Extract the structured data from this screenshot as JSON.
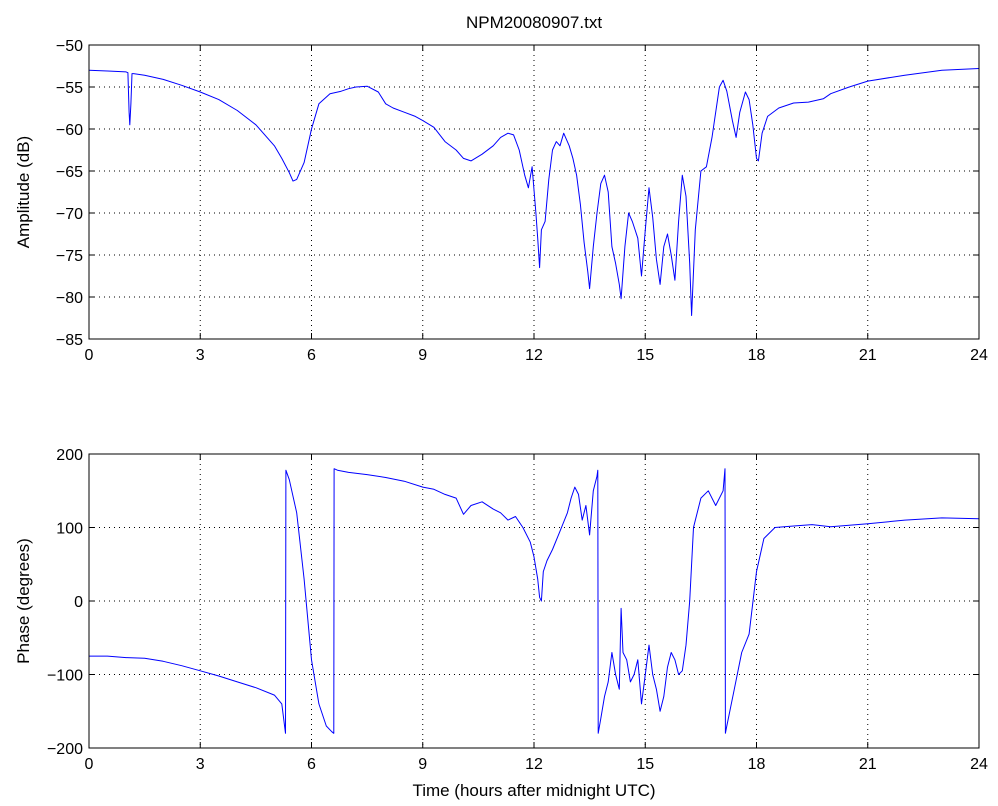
{
  "chart_data": [
    {
      "type": "line",
      "title": "NPM20080907.txt",
      "xlabel": "",
      "ylabel": "Amplitude (dB)",
      "xlim": [
        0,
        24
      ],
      "ylim": [
        -85,
        -50
      ],
      "xticks": [
        0,
        3,
        6,
        9,
        12,
        15,
        18,
        21,
        24
      ],
      "yticks": [
        -85,
        -80,
        -75,
        -70,
        -65,
        -60,
        -55,
        -50
      ],
      "xtick_labels": [
        "0",
        "3",
        "6",
        "9",
        "12",
        "15",
        "18",
        "21",
        "24"
      ],
      "ytick_labels": [
        "−85",
        "−80",
        "−75",
        "−70",
        "−65",
        "−60",
        "−55",
        "−50"
      ],
      "grid": true,
      "color": "#0000ff",
      "series": [
        {
          "x": [
            0,
            0.5,
            1.0,
            1.05,
            1.08,
            1.1,
            1.13,
            1.16,
            1.2,
            1.5,
            2.0,
            2.5,
            3.0,
            3.5,
            4.0,
            4.5,
            5.0,
            5.2,
            5.4,
            5.5,
            5.6,
            5.8,
            6.0,
            6.2,
            6.5,
            6.8,
            7.0,
            7.2,
            7.5,
            7.8,
            8.0,
            8.2,
            8.5,
            8.8,
            9.0,
            9.3,
            9.6,
            9.9,
            10.1,
            10.3,
            10.6,
            10.9,
            11.1,
            11.3,
            11.45,
            11.6,
            11.75,
            11.85,
            11.95,
            12.05,
            12.1,
            12.15,
            12.2,
            12.3,
            12.4,
            12.5,
            12.6,
            12.7,
            12.8,
            12.95,
            13.05,
            13.15,
            13.25,
            13.35,
            13.45,
            13.5,
            13.6,
            13.7,
            13.8,
            13.9,
            14.0,
            14.1,
            14.2,
            14.3,
            14.35,
            14.45,
            14.55,
            14.65,
            14.8,
            14.9,
            15.0,
            15.1,
            15.2,
            15.3,
            15.4,
            15.5,
            15.6,
            15.7,
            15.8,
            15.9,
            16.0,
            16.1,
            16.2,
            16.25,
            16.35,
            16.5,
            16.65,
            16.8,
            17.0,
            17.1,
            17.2,
            17.35,
            17.45,
            17.55,
            17.7,
            17.8,
            17.9,
            18.0,
            18.05,
            18.15,
            18.3,
            18.6,
            19.0,
            19.4,
            19.8,
            20.0,
            20.5,
            21.0,
            22.0,
            23.0,
            24.0
          ],
          "y": [
            -53.0,
            -53.1,
            -53.2,
            -53.3,
            -58.0,
            -59.5,
            -57.0,
            -53.4,
            -53.4,
            -53.6,
            -54.1,
            -54.8,
            -55.6,
            -56.5,
            -57.8,
            -59.5,
            -62.0,
            -63.5,
            -65.2,
            -66.2,
            -66.0,
            -64.0,
            -60.0,
            -57.0,
            -55.8,
            -55.5,
            -55.2,
            -55.0,
            -54.9,
            -55.6,
            -57.0,
            -57.5,
            -58.0,
            -58.5,
            -59.0,
            -59.8,
            -61.5,
            -62.5,
            -63.5,
            -63.8,
            -63.0,
            -62.0,
            -61.0,
            -60.5,
            -60.7,
            -62.5,
            -65.5,
            -67.0,
            -64.5,
            -70.0,
            -73.0,
            -76.5,
            -72.0,
            -71.0,
            -66.0,
            -62.5,
            -61.5,
            -62.0,
            -60.5,
            -62.0,
            -63.5,
            -65.5,
            -69.0,
            -73.5,
            -77.0,
            -79.0,
            -74.0,
            -70.0,
            -66.5,
            -65.5,
            -67.5,
            -74.0,
            -76.0,
            -78.5,
            -80.2,
            -74.0,
            -70.0,
            -71.0,
            -73.0,
            -77.5,
            -72.0,
            -67.0,
            -70.5,
            -75.5,
            -78.5,
            -74.0,
            -72.5,
            -75.0,
            -78.0,
            -71.0,
            -65.5,
            -68.0,
            -76.0,
            -82.2,
            -72.0,
            -65.0,
            -64.5,
            -61.0,
            -55.0,
            -54.2,
            -55.5,
            -59.0,
            -61.0,
            -58.0,
            -55.6,
            -56.5,
            -59.5,
            -63.5,
            -63.8,
            -60.5,
            -58.5,
            -57.5,
            -56.9,
            -56.8,
            -56.4,
            -55.8,
            -55.0,
            -54.3,
            -53.6,
            -53.0,
            -52.8
          ]
        }
      ]
    },
    {
      "type": "line",
      "title": "",
      "xlabel": "Time (hours after midnight UTC)",
      "ylabel": "Phase (degrees)",
      "xlim": [
        0,
        24
      ],
      "ylim": [
        -200,
        200
      ],
      "xticks": [
        0,
        3,
        6,
        9,
        12,
        15,
        18,
        21,
        24
      ],
      "yticks": [
        -200,
        -100,
        0,
        100,
        200
      ],
      "xtick_labels": [
        "0",
        "3",
        "6",
        "9",
        "12",
        "15",
        "18",
        "21",
        "24"
      ],
      "ytick_labels": [
        "−200",
        "−100",
        "0",
        "100",
        "200"
      ],
      "grid": true,
      "color": "#0000ff",
      "series": [
        {
          "x": [
            0,
            0.5,
            1.0,
            1.5,
            2.0,
            2.5,
            3.0,
            3.5,
            4.0,
            4.5,
            5.0,
            5.2,
            5.3,
            5.31,
            5.4,
            5.6,
            5.8,
            6.0,
            6.2,
            6.4,
            6.55,
            6.6,
            6.61,
            6.7,
            7.0,
            7.5,
            8.0,
            8.5,
            9.0,
            9.3,
            9.6,
            9.9,
            10.1,
            10.3,
            10.6,
            10.9,
            11.1,
            11.3,
            11.5,
            11.7,
            11.9,
            12.0,
            12.1,
            12.15,
            12.2,
            12.25,
            12.35,
            12.5,
            12.7,
            12.9,
            13.0,
            13.1,
            13.2,
            13.3,
            13.4,
            13.5,
            13.6,
            13.7,
            13.72,
            13.73,
            13.8,
            13.9,
            14.0,
            14.1,
            14.2,
            14.3,
            14.35,
            14.4,
            14.5,
            14.6,
            14.7,
            14.8,
            14.9,
            15.0,
            15.1,
            15.2,
            15.3,
            15.4,
            15.5,
            15.6,
            15.7,
            15.8,
            15.9,
            16.0,
            16.1,
            16.2,
            16.3,
            16.5,
            16.7,
            16.9,
            17.1,
            17.15,
            17.16,
            17.2,
            17.4,
            17.6,
            17.8,
            18.0,
            18.2,
            18.5,
            19.0,
            19.5,
            20.0,
            21.0,
            22.0,
            23.0,
            24.0
          ],
          "y": [
            -75,
            -75,
            -77,
            -78,
            -82,
            -88,
            -95,
            -102,
            -110,
            -118,
            -128,
            -140,
            -180,
            178,
            165,
            120,
            30,
            -80,
            -140,
            -170,
            -178,
            -180,
            180,
            178,
            175,
            172,
            168,
            163,
            155,
            152,
            145,
            140,
            118,
            130,
            135,
            125,
            120,
            110,
            115,
            100,
            80,
            60,
            30,
            5,
            0,
            40,
            55,
            70,
            95,
            120,
            140,
            155,
            145,
            110,
            130,
            90,
            150,
            170,
            178,
            -180,
            -160,
            -130,
            -110,
            -70,
            -100,
            -120,
            -10,
            -70,
            -80,
            -110,
            -100,
            -80,
            -140,
            -100,
            -60,
            -100,
            -120,
            -150,
            -130,
            -90,
            -70,
            -80,
            -100,
            -95,
            -60,
            0,
            100,
            140,
            150,
            130,
            150,
            180,
            -180,
            -170,
            -120,
            -70,
            -45,
            40,
            85,
            100,
            102,
            104,
            101,
            105,
            110,
            113,
            112
          ]
        }
      ]
    }
  ]
}
